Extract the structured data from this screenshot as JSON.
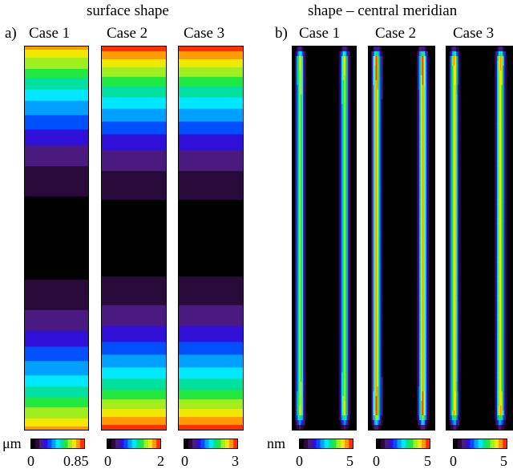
{
  "colormap": [
    "#000000",
    "#2a0a3a",
    "#4a1a80",
    "#3010d8",
    "#0050ff",
    "#00a0ff",
    "#00e8ff",
    "#00e0a0",
    "#20e840",
    "#a0ee20",
    "#f0e800",
    "#ff9a00",
    "#ff3000"
  ],
  "left": {
    "title": "surface shape",
    "label": "a)",
    "unit": "μm",
    "cases": [
      {
        "name": "Case 1",
        "cb_min": "0",
        "cb_max": "0.85",
        "peak_level": 0.9
      },
      {
        "name": "Case 2",
        "cb_min": "0",
        "cb_max": "2",
        "peak_level": 1.0
      },
      {
        "name": "Case 3",
        "cb_min": "0",
        "cb_max": "3",
        "peak_level": 1.0
      }
    ]
  },
  "right": {
    "title": "shape – central meridian",
    "label": "b)",
    "unit": "nm",
    "cases": [
      {
        "name": "Case 1",
        "cb_min": "0",
        "cb_max": "5",
        "peak_level": 0.75
      },
      {
        "name": "Case 2",
        "cb_min": "0",
        "cb_max": "5",
        "peak_level": 0.92
      },
      {
        "name": "Case 3",
        "cb_min": "0",
        "cb_max": "5",
        "peak_level": 0.82
      }
    ]
  }
}
